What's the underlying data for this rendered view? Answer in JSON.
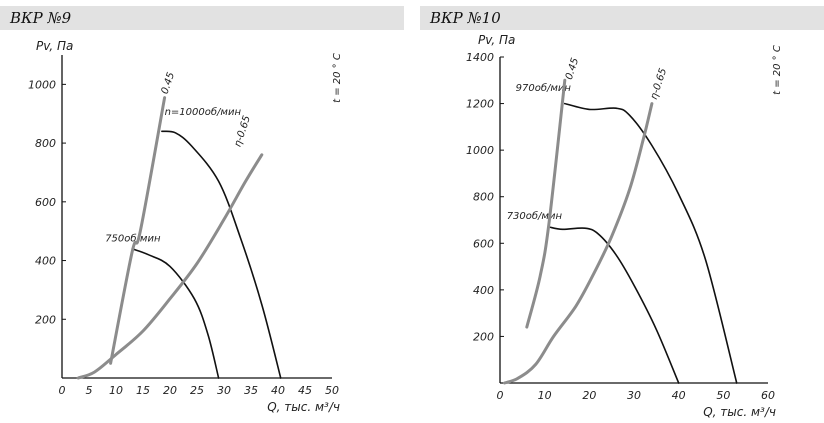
{
  "panels": [
    {
      "title": "ВКР №9",
      "chart_data": {
        "type": "line",
        "ylabel": "Pv, Па",
        "xlabel": "Q, тыс. м³/ч",
        "temperature": "t = 20 ° C",
        "xlim": [
          0,
          50
        ],
        "ylim": [
          0,
          1100
        ],
        "x_ticks": [
          "0",
          "5",
          "10",
          "15",
          "20",
          "25",
          "30",
          "35",
          "40",
          "45",
          "50"
        ],
        "y_ticks": [
          {
            "value": 200,
            "label": "200"
          },
          {
            "value": 400,
            "label": "400"
          },
          {
            "value": 600,
            "label": "600"
          },
          {
            "value": 800,
            "label": "800"
          },
          {
            "value": 1000,
            "label": "1000"
          }
        ],
        "grid": false,
        "series": [
          {
            "name": "n=1000об/мин",
            "kind": "performance",
            "color": "#111111",
            "points": [
              [
                18.5,
                840
              ],
              [
                21,
                835
              ],
              [
                24,
                790
              ],
              [
                29,
                670
              ],
              [
                33,
                480
              ],
              [
                37,
                250
              ],
              [
                40.5,
                0
              ]
            ],
            "label_at": [
              19,
              895
            ]
          },
          {
            "name": "750об/мин",
            "kind": "performance",
            "color": "#111111",
            "points": [
              [
                13,
                440
              ],
              [
                16,
                420
              ],
              [
                20,
                380
              ],
              [
                24.5,
                270
              ],
              [
                27,
                150
              ],
              [
                29,
                0
              ]
            ],
            "label_at": [
              8,
              465
            ]
          },
          {
            "name": "0.45",
            "kind": "efficiency",
            "color": "#8c8c8c",
            "points": [
              [
                9,
                50
              ],
              [
                13,
                430
              ],
              [
                14.5,
                500
              ],
              [
                19,
                955
              ]
            ],
            "label_at": [
              19.5,
              965
            ]
          },
          {
            "name": "η-0.65",
            "kind": "efficiency",
            "color": "#8c8c8c",
            "points": [
              [
                3,
                0
              ],
              [
                6,
                20
              ],
              [
                10,
                80
              ],
              [
                15,
                160
              ],
              [
                20,
                270
              ],
              [
                25,
                390
              ],
              [
                30,
                540
              ],
              [
                34,
                670
              ],
              [
                37,
                760
              ]
            ],
            "label_at": [
              33,
              785
            ]
          }
        ]
      }
    },
    {
      "title": "ВКР №10",
      "chart_data": {
        "type": "line",
        "ylabel": "Pv, Па",
        "xlabel": "Q, тыс. м³/ч",
        "temperature": "t = 20 ° C",
        "xlim": [
          0,
          60
        ],
        "ylim": [
          0,
          1400
        ],
        "x_ticks": [
          "0",
          "10",
          "20",
          "30",
          "40",
          "50",
          "60"
        ],
        "y_ticks": [
          {
            "value": 200,
            "label": "200"
          },
          {
            "value": 400,
            "label": "400"
          },
          {
            "value": 600,
            "label": "600"
          },
          {
            "value": 800,
            "label": "800"
          },
          {
            "value": 1000,
            "label": "1000"
          },
          {
            "value": 1200,
            "label": "1200"
          },
          {
            "value": 1400,
            "label": "1400"
          }
        ],
        "grid": false,
        "series": [
          {
            "name": "970об/мин",
            "kind": "performance",
            "color": "#111111",
            "points": [
              [
                14.5,
                1200
              ],
              [
                20,
                1175
              ],
              [
                26,
                1180
              ],
              [
                29,
                1150
              ],
              [
                34,
                1020
              ],
              [
                40,
                810
              ],
              [
                46,
                530
              ],
              [
                53,
                0
              ]
            ],
            "label_at": [
              3.5,
              1255
            ]
          },
          {
            "name": "730об/мин",
            "kind": "performance",
            "color": "#111111",
            "points": [
              [
                11,
                670
              ],
              [
                14,
                660
              ],
              [
                19,
                665
              ],
              [
                22,
                640
              ],
              [
                26,
                550
              ],
              [
                30,
                420
              ],
              [
                35,
                230
              ],
              [
                40,
                0
              ]
            ],
            "label_at": [
              1.5,
              705
            ]
          },
          {
            "name": "0.45",
            "kind": "efficiency",
            "color": "#8c8c8c",
            "points": [
              [
                6,
                240
              ],
              [
                9,
                460
              ],
              [
                11,
                690
              ],
              [
                14.5,
                1300
              ]
            ],
            "label_at": [
              16,
              1300
            ]
          },
          {
            "name": "η-0.65",
            "kind": "efficiency",
            "color": "#8c8c8c",
            "points": [
              [
                1,
                0
              ],
              [
                4,
                20
              ],
              [
                8,
                80
              ],
              [
                12,
                200
              ],
              [
                17,
                330
              ],
              [
                21,
                470
              ],
              [
                25,
                630
              ],
              [
                29,
                830
              ],
              [
                32,
                1040
              ],
              [
                34,
                1200
              ]
            ],
            "label_at": [
              35,
              1215
            ]
          }
        ]
      }
    }
  ]
}
